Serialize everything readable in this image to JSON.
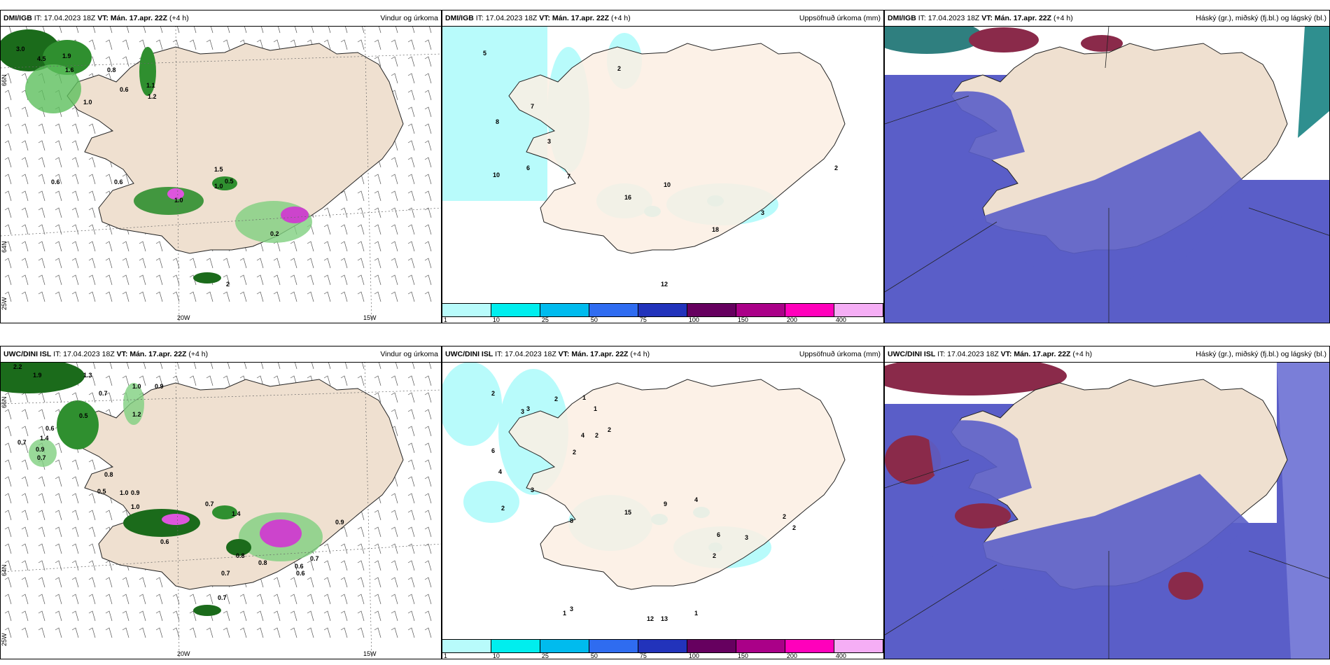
{
  "common": {
    "run_time": "IT: 17.04.2023 18Z",
    "valid_label": "VT: Mán. 17.apr. 22Z",
    "lead": "(+4 h)"
  },
  "panels": [
    {
      "model": "DMI/IGB",
      "title": "Vindur og úrkoma"
    },
    {
      "model": "DMI/IGB",
      "title": "Uppsöfnuð úrkoma (mm)"
    },
    {
      "model": "DMI/IGB",
      "title": "Háský (gr.), miðský (fj.bl.) og lágský (bl.)"
    },
    {
      "model": "UWC/DINI ISL",
      "title": "Vindur og úrkoma"
    },
    {
      "model": "UWC/DINI ISL",
      "title": "Uppsöfnuð úrkoma (mm)"
    },
    {
      "model": "UWC/DINI ISL",
      "title": "Háský (gr.), miðský (fj.bl.) og lágský (bl.)"
    }
  ],
  "grid_labels": {
    "lat66": "66N",
    "lat64": "64N",
    "lon25": "25W",
    "lon20": "20W",
    "lon15": "15W"
  },
  "colorbar": {
    "ticks": [
      "1",
      "10",
      "25",
      "50",
      "75",
      "100",
      "150",
      "200",
      "400"
    ],
    "colors": [
      "#b8fbfb",
      "#00eeee",
      "#00bbee",
      "#2f6cf0",
      "#2233bb",
      "#66005f",
      "#aa0088",
      "#ff00bb",
      "#f5aef5"
    ]
  },
  "wind_labels_top": [
    "3.0",
    "4.5",
    "1.9",
    "1.6",
    "0.8",
    "0.6",
    "1.1",
    "1.2",
    "1.0",
    "0.6",
    "0.6",
    "1.0",
    "0.5",
    "1.5",
    "1.0",
    "0.2",
    "2"
  ],
  "wind_labels_bottom": [
    "2.2",
    "1.9",
    "1.3",
    "0.7",
    "1.0",
    "0.9",
    "1.2",
    "0.5",
    "0.6",
    "1.4",
    "0.7",
    "0.9",
    "0.7",
    "0.8",
    "0.5",
    "1.0",
    "0.9",
    "0.7",
    "1.0",
    "0.6",
    "0.7",
    "0.8",
    "0.6",
    "0.7",
    "0.9",
    "1.4",
    "0.8",
    "0.6",
    "0.7"
  ],
  "precip_labels_top": [
    "5",
    "2",
    "8",
    "7",
    "3",
    "10",
    "6",
    "7",
    "16",
    "10",
    "18",
    "3",
    "2",
    "12"
  ],
  "precip_labels_bottom": [
    "2",
    "1",
    "3",
    "2",
    "1",
    "3",
    "2",
    "2",
    "4",
    "2",
    "6",
    "4",
    "3",
    "2",
    "8",
    "15",
    "9",
    "4",
    "6",
    "2",
    "3",
    "2",
    "2",
    "1",
    "3",
    "12",
    "13",
    "1"
  ]
}
